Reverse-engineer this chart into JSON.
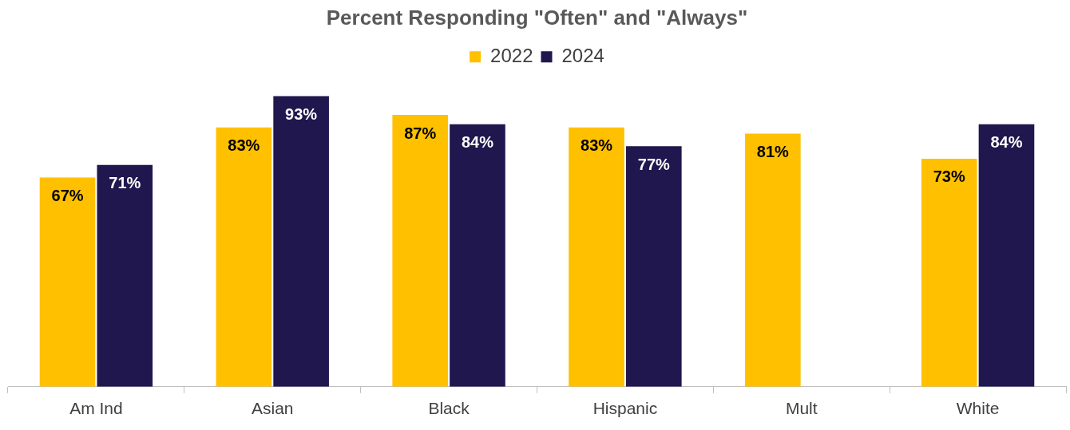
{
  "chart_data": {
    "type": "bar",
    "title": "Percent Responding \"Often\" and \"Always\"",
    "categories": [
      "Am Ind",
      "Asian",
      "Black",
      "Hispanic",
      "Mult",
      "White"
    ],
    "series": [
      {
        "name": "2022",
        "color": "#ffc000",
        "values": [
          67,
          83,
          87,
          83,
          81,
          73
        ],
        "value_labels": [
          "67%",
          "83%",
          "87%",
          "83%",
          "81%",
          "73%"
        ]
      },
      {
        "name": "2024",
        "color": "#1f174d",
        "values": [
          71,
          93,
          84,
          77,
          null,
          84
        ],
        "value_labels": [
          "71%",
          "93%",
          "84%",
          "77%",
          null,
          "84%"
        ]
      }
    ],
    "legend": "top",
    "grid": false
  }
}
